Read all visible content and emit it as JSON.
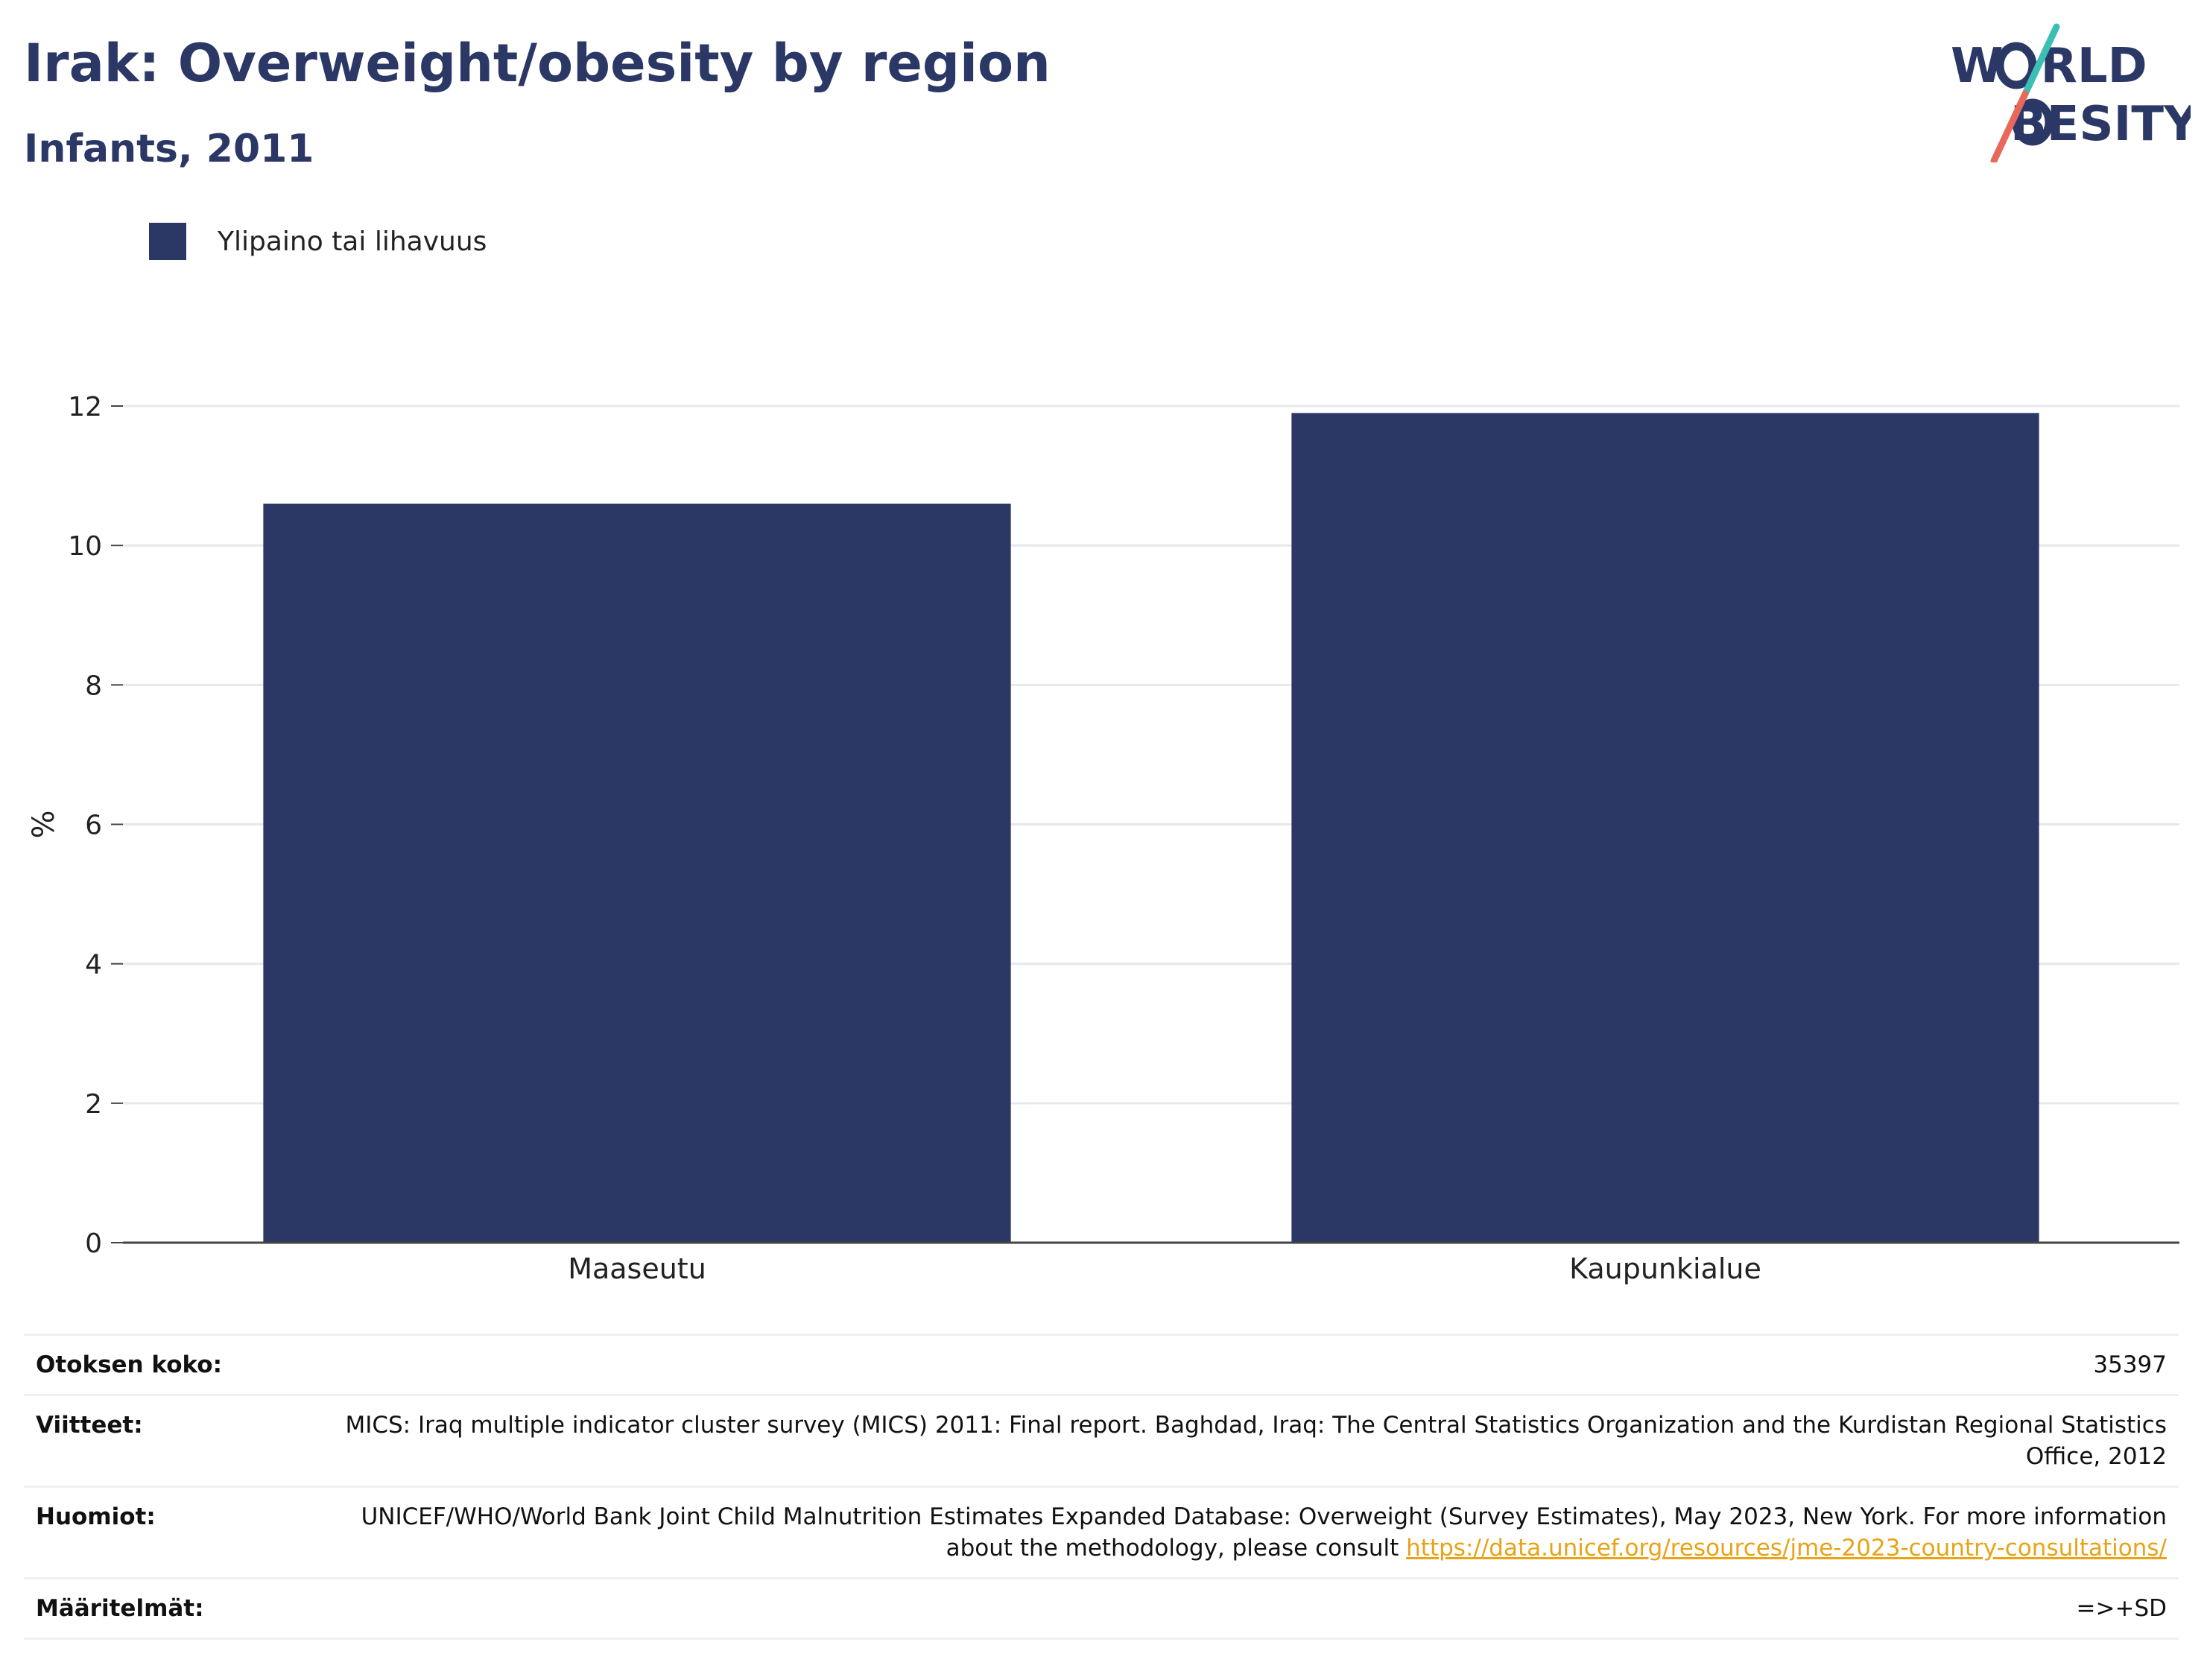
{
  "header": {
    "title": "Irak: Overweight/obesity by region",
    "subtitle": "Infants, 2011"
  },
  "logo": {
    "line1": "W",
    "line1_rest": "RLD",
    "line2": "BESITY",
    "alt": "WORLD OBESITY",
    "colors": {
      "text": "#2b3866",
      "slash_top": "#3bbfb4",
      "slash_bottom": "#e8695a"
    }
  },
  "chart_data": {
    "type": "bar",
    "categories": [
      "Maaseutu",
      "Kaupunkialue"
    ],
    "series": [
      {
        "name": "Ylipaino tai lihavuus",
        "values": [
          10.6,
          11.9
        ],
        "color": "#2b3866"
      }
    ],
    "xlabel": "",
    "ylabel": "%",
    "ylim": [
      0,
      12
    ],
    "yticks": [
      0,
      2,
      4,
      6,
      8,
      10,
      12
    ],
    "grid": true,
    "legend_position": "top-left"
  },
  "info": {
    "sample_size": {
      "label": "Otoksen koko:",
      "value": "35397"
    },
    "references": {
      "label": "Viitteet:",
      "value": "MICS: Iraq multiple indicator cluster survey (MICS) 2011: Final report. Baghdad, Iraq: The Central Statistics Organization and the Kurdistan Regional Statistics Office, 2012"
    },
    "notes": {
      "label": "Huomiot:",
      "value": "UNICEF/WHO/World Bank Joint Child Malnutrition Estimates Expanded Database: Overweight (Survey Estimates), May 2023, New York. For more information about the methodology, please consult ",
      "link": "https://data.unicef.org/resources/jme-2023-country-consultations/"
    },
    "definitions": {
      "label": "Määritelmät:",
      "value": "=>+SD"
    }
  }
}
